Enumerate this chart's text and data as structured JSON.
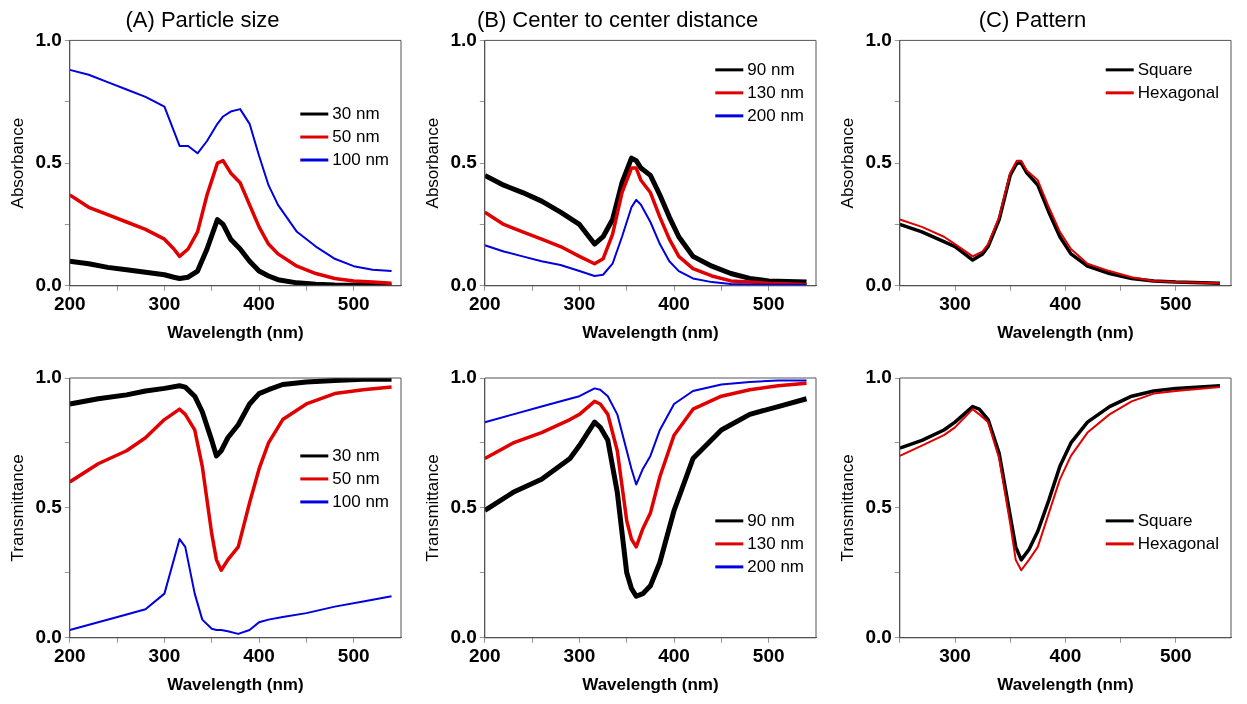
{
  "chart_data": [
    {
      "type": "line",
      "title": "(A) Particle size",
      "xlabel": "Wavelength (nm)",
      "ylabel": "Absorbance",
      "legend": "right",
      "marker": "none",
      "x": [
        200,
        220,
        240,
        260,
        280,
        300,
        310,
        316,
        325,
        335,
        345,
        356,
        362,
        370,
        380,
        390,
        400,
        410,
        420,
        440,
        460,
        480,
        500,
        520,
        540
      ],
      "xlim": [
        200,
        550
      ],
      "xticks": [
        200,
        {
          "value": 250,
          "label": null
        },
        300,
        {
          "value": 350,
          "label": null
        },
        400,
        {
          "value": 450,
          "label": null
        },
        500
      ],
      "ylim": [
        0,
        1
      ],
      "yticks": [
        {
          "value": 0,
          "label": "0.0"
        },
        {
          "value": 0.25,
          "label": null
        },
        {
          "value": 0.5,
          "label": "0.5"
        },
        {
          "value": 0.75,
          "label": null
        },
        {
          "value": 1,
          "label": "1.0"
        }
      ],
      "series": [
        {
          "name": "30 nm",
          "color": "#000000",
          "values": [
            0.1,
            0.09,
            0.075,
            0.065,
            0.055,
            0.045,
            0.035,
            0.03,
            0.035,
            0.06,
            0.15,
            0.27,
            0.25,
            0.19,
            0.15,
            0.1,
            0.06,
            0.04,
            0.025,
            0.012,
            0.006,
            0.003,
            0.002,
            0.001,
            0
          ]
        },
        {
          "name": "50 nm",
          "color": "#e00000",
          "values": [
            0.37,
            0.32,
            0.29,
            0.26,
            0.23,
            0.19,
            0.15,
            0.12,
            0.15,
            0.22,
            0.37,
            0.5,
            0.51,
            0.46,
            0.42,
            0.33,
            0.24,
            0.17,
            0.13,
            0.08,
            0.05,
            0.03,
            0.02,
            0.015,
            0.01
          ]
        },
        {
          "name": "100 nm",
          "color": "#0000e0",
          "values": [
            0.88,
            0.86,
            0.83,
            0.8,
            0.77,
            0.73,
            0.63,
            0.57,
            0.57,
            0.54,
            0.59,
            0.66,
            0.69,
            0.71,
            0.72,
            0.66,
            0.53,
            0.41,
            0.33,
            0.22,
            0.16,
            0.11,
            0.08,
            0.065,
            0.06
          ]
        }
      ]
    },
    {
      "type": "line",
      "title": "(B) Center to center distance",
      "xlabel": "Wavelength (nm)",
      "ylabel": "Absorbance",
      "legend": "top right",
      "marker": "none",
      "x": [
        200,
        220,
        240,
        260,
        280,
        300,
        316,
        325,
        335,
        345,
        355,
        360,
        365,
        375,
        385,
        395,
        405,
        420,
        440,
        460,
        480,
        500,
        540
      ],
      "xlim": [
        200,
        550
      ],
      "xticks": [
        200,
        {
          "value": 250,
          "label": null
        },
        300,
        {
          "value": 350,
          "label": null
        },
        400,
        {
          "value": 450,
          "label": null
        },
        500
      ],
      "ylim": [
        0,
        1
      ],
      "yticks": [
        {
          "value": 0,
          "label": "0.0"
        },
        {
          "value": 0.25,
          "label": null
        },
        {
          "value": 0.5,
          "label": "0.5"
        },
        {
          "value": 0.75,
          "label": null
        },
        {
          "value": 1,
          "label": "1.0"
        }
      ],
      "series": [
        {
          "name": "90 nm",
          "color": "#000000",
          "values": [
            0.45,
            0.41,
            0.38,
            0.345,
            0.3,
            0.25,
            0.17,
            0.2,
            0.27,
            0.42,
            0.52,
            0.51,
            0.48,
            0.45,
            0.37,
            0.28,
            0.2,
            0.12,
            0.08,
            0.05,
            0.03,
            0.02,
            0.015
          ]
        },
        {
          "name": "130 nm",
          "color": "#e00000",
          "values": [
            0.3,
            0.25,
            0.22,
            0.19,
            0.16,
            0.12,
            0.09,
            0.11,
            0.21,
            0.38,
            0.48,
            0.48,
            0.43,
            0.38,
            0.28,
            0.19,
            0.12,
            0.07,
            0.04,
            0.02,
            0.015,
            0.01,
            0.005
          ]
        },
        {
          "name": "200 nm",
          "color": "#0000e0",
          "values": [
            0.165,
            0.14,
            0.12,
            0.1,
            0.085,
            0.06,
            0.04,
            0.045,
            0.09,
            0.2,
            0.32,
            0.35,
            0.33,
            0.26,
            0.17,
            0.1,
            0.06,
            0.03,
            0.015,
            0.007,
            0.005,
            0.004,
            0.004
          ]
        }
      ]
    },
    {
      "type": "line",
      "title": "(C) Pattern",
      "xlabel": "Wavelength (nm)",
      "ylabel": "Absorbance",
      "legend": "top right",
      "marker": "none",
      "x": [
        250,
        270,
        290,
        300,
        316,
        325,
        330,
        340,
        350,
        356,
        360,
        365,
        375,
        385,
        395,
        405,
        420,
        440,
        460,
        480,
        500,
        540
      ],
      "xlim": [
        250,
        550
      ],
      "xticks": [
        {
          "value": 250,
          "label": null
        },
        300,
        {
          "value": 350,
          "label": null
        },
        400,
        {
          "value": 450,
          "label": null
        },
        500
      ],
      "ylim": [
        0,
        1
      ],
      "yticks": [
        {
          "value": 0,
          "label": "0.0"
        },
        {
          "value": 0.25,
          "label": null
        },
        {
          "value": 0.5,
          "label": "0.5"
        },
        {
          "value": 0.75,
          "label": null
        },
        {
          "value": 1,
          "label": "1.0"
        }
      ],
      "series": [
        {
          "name": "Square",
          "color": "#000000",
          "values": [
            0.25,
            0.22,
            0.18,
            0.16,
            0.105,
            0.13,
            0.16,
            0.27,
            0.45,
            0.5,
            0.5,
            0.46,
            0.41,
            0.3,
            0.2,
            0.13,
            0.08,
            0.05,
            0.03,
            0.02,
            0.015,
            0.01
          ]
        },
        {
          "name": "Hexagonal",
          "color": "#e00000",
          "values": [
            0.27,
            0.24,
            0.2,
            0.17,
            0.12,
            0.14,
            0.17,
            0.28,
            0.46,
            0.51,
            0.51,
            0.47,
            0.43,
            0.32,
            0.22,
            0.15,
            0.09,
            0.06,
            0.035,
            0.02,
            0.015,
            0.01
          ]
        }
      ]
    },
    {
      "type": "line",
      "xlabel": "Wavelength (nm)",
      "ylabel": "Transmittance",
      "legend": "right",
      "marker": "none",
      "x": [
        200,
        230,
        260,
        280,
        300,
        316,
        322,
        332,
        340,
        350,
        355,
        360,
        367,
        378,
        390,
        400,
        410,
        425,
        450,
        480,
        510,
        540
      ],
      "xlim": [
        200,
        550
      ],
      "xticks": [
        200,
        {
          "value": 250,
          "label": null
        },
        300,
        {
          "value": 350,
          "label": null
        },
        400,
        {
          "value": 450,
          "label": null
        },
        500
      ],
      "ylim": [
        0,
        1
      ],
      "yticks": [
        {
          "value": 0,
          "label": "0.0"
        },
        {
          "value": 0.25,
          "label": null
        },
        {
          "value": 0.5,
          "label": "0.5"
        },
        {
          "value": 0.75,
          "label": null
        },
        {
          "value": 1,
          "label": "1.0"
        }
      ],
      "series": [
        {
          "name": "30 nm",
          "color": "#000000",
          "values": [
            0.9,
            0.92,
            0.935,
            0.95,
            0.96,
            0.97,
            0.965,
            0.93,
            0.87,
            0.76,
            0.7,
            0.72,
            0.77,
            0.82,
            0.9,
            0.94,
            0.955,
            0.975,
            0.985,
            0.99,
            0.995,
            0.995
          ]
        },
        {
          "name": "50 nm",
          "color": "#e00000",
          "values": [
            0.6,
            0.67,
            0.72,
            0.77,
            0.84,
            0.88,
            0.86,
            0.8,
            0.66,
            0.4,
            0.3,
            0.26,
            0.3,
            0.35,
            0.52,
            0.65,
            0.75,
            0.84,
            0.9,
            0.94,
            0.955,
            0.965
          ]
        },
        {
          "name": "100 nm",
          "color": "#0000e0",
          "values": [
            0.03,
            0.06,
            0.09,
            0.11,
            0.17,
            0.38,
            0.35,
            0.17,
            0.07,
            0.035,
            0.03,
            0.03,
            0.025,
            0.015,
            0.03,
            0.06,
            0.07,
            0.08,
            0.095,
            0.12,
            0.14,
            0.16
          ]
        }
      ]
    },
    {
      "type": "line",
      "xlabel": "Wavelength (nm)",
      "ylabel": "Transmittance",
      "legend": "bottom right",
      "marker": "none",
      "x": [
        200,
        230,
        260,
        290,
        300,
        316,
        322,
        330,
        340,
        350,
        355,
        360,
        367,
        375,
        385,
        400,
        420,
        450,
        480,
        510,
        540
      ],
      "xlim": [
        200,
        550
      ],
      "xticks": [
        200,
        {
          "value": 250,
          "label": null
        },
        300,
        {
          "value": 350,
          "label": null
        },
        400,
        {
          "value": 450,
          "label": null
        },
        500
      ],
      "ylim": [
        0,
        1
      ],
      "yticks": [
        {
          "value": 0,
          "label": "0.0"
        },
        {
          "value": 0.25,
          "label": null
        },
        {
          "value": 0.5,
          "label": "0.5"
        },
        {
          "value": 0.75,
          "label": null
        },
        {
          "value": 1,
          "label": "1.0"
        }
      ],
      "series": [
        {
          "name": "90 nm",
          "color": "#000000",
          "values": [
            0.49,
            0.56,
            0.61,
            0.69,
            0.74,
            0.83,
            0.81,
            0.76,
            0.56,
            0.25,
            0.19,
            0.16,
            0.17,
            0.2,
            0.29,
            0.49,
            0.69,
            0.8,
            0.86,
            0.89,
            0.92
          ]
        },
        {
          "name": "130 nm",
          "color": "#e00000",
          "values": [
            0.69,
            0.75,
            0.79,
            0.84,
            0.86,
            0.91,
            0.9,
            0.86,
            0.72,
            0.45,
            0.38,
            0.35,
            0.42,
            0.48,
            0.62,
            0.78,
            0.88,
            0.93,
            0.955,
            0.97,
            0.98
          ]
        },
        {
          "name": "200 nm",
          "color": "#0000e0",
          "values": [
            0.83,
            0.86,
            0.89,
            0.92,
            0.93,
            0.96,
            0.955,
            0.93,
            0.86,
            0.72,
            0.65,
            0.59,
            0.65,
            0.7,
            0.8,
            0.9,
            0.95,
            0.975,
            0.985,
            0.99,
            0.99
          ]
        }
      ]
    },
    {
      "type": "line",
      "xlabel": "Wavelength (nm)",
      "ylabel": "Transmittance",
      "legend": "bottom right",
      "marker": "none",
      "x": [
        250,
        270,
        290,
        300,
        316,
        322,
        330,
        340,
        350,
        355,
        360,
        367,
        375,
        385,
        395,
        405,
        420,
        440,
        460,
        480,
        500,
        540
      ],
      "xlim": [
        250,
        550
      ],
      "xticks": [
        {
          "value": 250,
          "label": null
        },
        300,
        {
          "value": 350,
          "label": null
        },
        400,
        {
          "value": 450,
          "label": null
        },
        500
      ],
      "ylim": [
        0,
        1
      ],
      "yticks": [
        {
          "value": 0,
          "label": "0.0"
        },
        {
          "value": 0.25,
          "label": null
        },
        {
          "value": 0.5,
          "label": "0.5"
        },
        {
          "value": 0.75,
          "label": null
        },
        {
          "value": 1,
          "label": "1.0"
        }
      ],
      "series": [
        {
          "name": "Square",
          "color": "#000000",
          "values": [
            0.73,
            0.76,
            0.8,
            0.83,
            0.89,
            0.88,
            0.84,
            0.71,
            0.47,
            0.35,
            0.3,
            0.34,
            0.41,
            0.53,
            0.66,
            0.75,
            0.83,
            0.89,
            0.93,
            0.95,
            0.96,
            0.97
          ]
        },
        {
          "name": "Hexagonal",
          "color": "#e00000",
          "values": [
            0.7,
            0.74,
            0.78,
            0.81,
            0.88,
            0.86,
            0.83,
            0.69,
            0.44,
            0.3,
            0.26,
            0.3,
            0.35,
            0.48,
            0.61,
            0.7,
            0.79,
            0.86,
            0.91,
            0.94,
            0.95,
            0.965
          ]
        }
      ]
    }
  ]
}
